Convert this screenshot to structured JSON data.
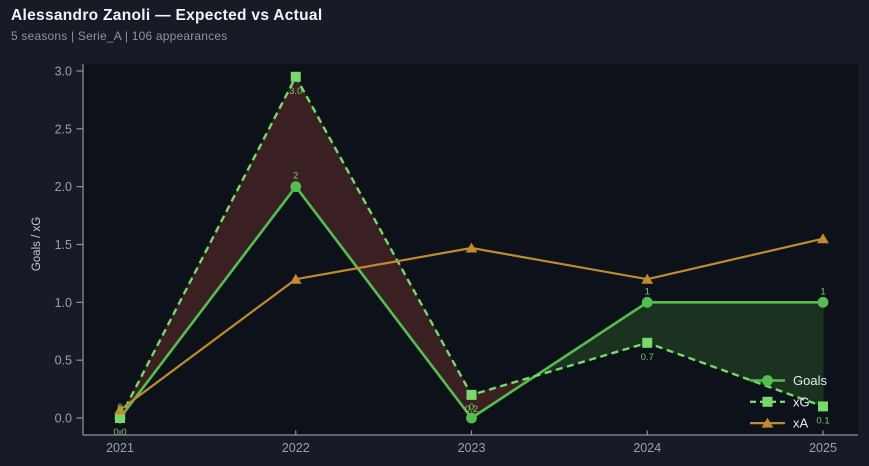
{
  "header": {
    "title": "Alessandro Zanoli — Expected vs Actual",
    "subtitle": "5 seasons | Serie_A | 106 appearances"
  },
  "chart_data": {
    "type": "line",
    "title": "Alessandro Zanoli — Expected vs Actual",
    "subtitle": "5 seasons | Serie_A | 106 appearances",
    "x": [
      "2021",
      "2022",
      "2023",
      "2024",
      "2025"
    ],
    "xlabel": "",
    "ylabel": "Goals / xG",
    "ylim": [
      -0.13,
      3.06
    ],
    "yticks": [
      "0.0",
      "0.5",
      "1.0",
      "1.5",
      "2.0",
      "2.5",
      "3.0"
    ],
    "grid": false,
    "legend_position": "lower right",
    "series": [
      {
        "name": "Goals",
        "values": [
          0,
          2,
          0,
          1,
          1
        ],
        "point_labels": [
          "0",
          "2",
          "0",
          "1",
          "1"
        ],
        "label_side": "above",
        "marker": "circle",
        "line_style": "solid",
        "color": "#55be50"
      },
      {
        "name": "xG",
        "values": [
          0.0,
          2.95,
          0.2,
          0.65,
          0.1
        ],
        "point_labels": [
          "0.0",
          "3.0",
          "0.2",
          "0.7",
          "0.1"
        ],
        "label_side": "below",
        "marker": "square",
        "line_style": "dashed",
        "color": "#77d96a"
      },
      {
        "name": "xA",
        "values": [
          0.07,
          1.2,
          1.47,
          1.2,
          1.55
        ],
        "point_labels": [],
        "label_side": "none",
        "marker": "triangle",
        "line_style": "solid",
        "color": "#c08a2e"
      }
    ],
    "fill_between": {
      "series_a": "Goals",
      "series_b": "xG",
      "color_xg_above_goals": "#3a2022",
      "color_goals_above_xg": "#1b3220"
    }
  },
  "colors": {
    "page_bg": "#161b25",
    "plot_bg": "#0d1119",
    "title": "#f2f4f7",
    "subtitle": "#8d94a0",
    "axis": "#8f96a1",
    "tick_label": "#9aa1ad",
    "axis_label": "#c6cad1",
    "point_label": "#7dc86b",
    "legend_text": "#e8eaed"
  }
}
